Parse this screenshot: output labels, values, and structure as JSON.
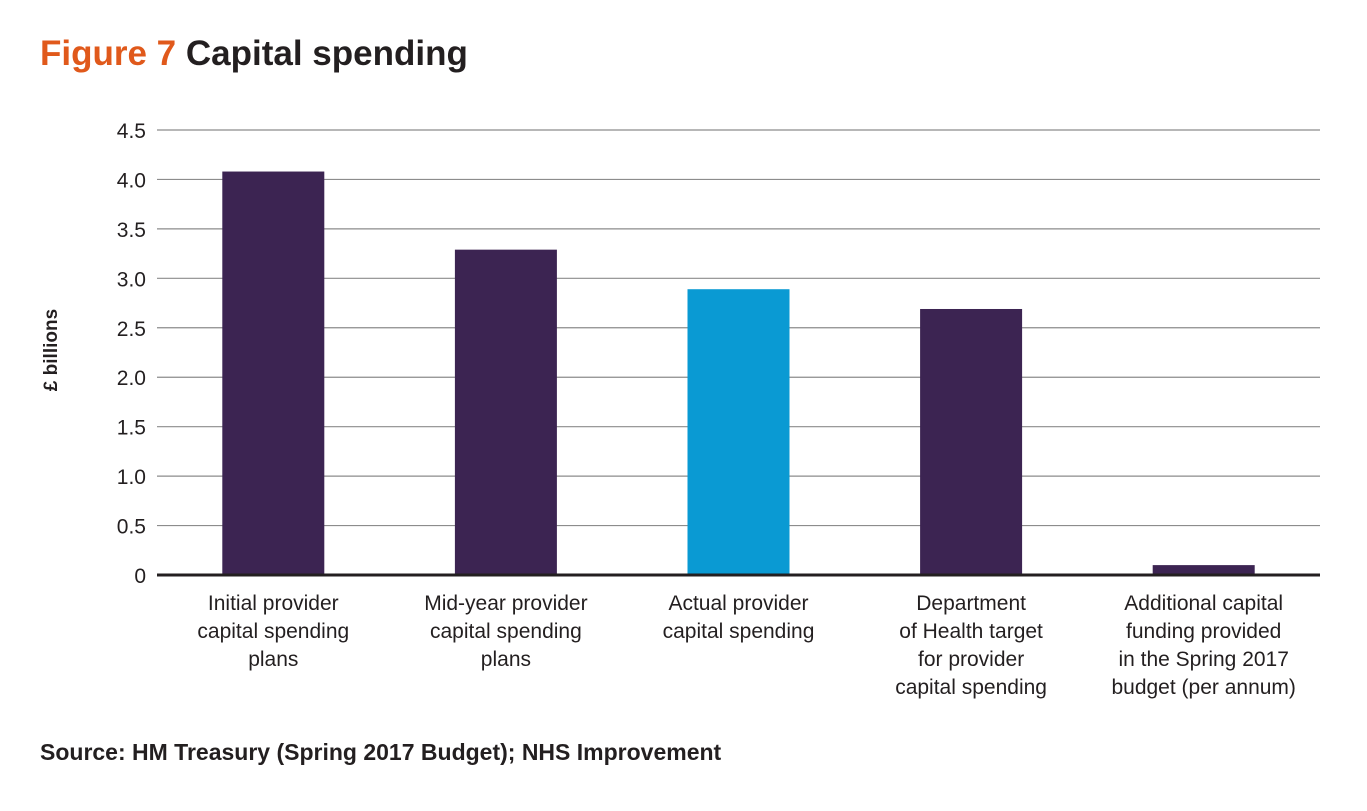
{
  "figure_label": "Figure 7",
  "figure_title": "Capital spending",
  "source": "Source: HM Treasury (Spring 2017 Budget); NHS Improvement",
  "chart_data": {
    "type": "bar",
    "title": "Capital spending",
    "xlabel": "",
    "ylabel": "£ billions",
    "ylim": [
      0,
      4.5
    ],
    "yticks": [
      0,
      0.5,
      1.0,
      1.5,
      2.0,
      2.5,
      3.0,
      3.5,
      4.0,
      4.5
    ],
    "ytick_labels": [
      "0",
      "0.5",
      "1.0",
      "1.5",
      "2.0",
      "2.5",
      "3.0",
      "3.5",
      "4.0",
      "4.5"
    ],
    "grid": true,
    "categories": [
      [
        "Initial provider",
        "capital spending",
        "plans"
      ],
      [
        "Mid-year provider",
        "capital spending",
        "plans"
      ],
      [
        "Actual provider",
        "capital spending"
      ],
      [
        "Department",
        "of Health target",
        "for provider",
        "capital spending"
      ],
      [
        "Additional capital",
        "funding provided",
        "in the Spring 2017",
        "budget (per annum)"
      ]
    ],
    "values": [
      4.08,
      3.29,
      2.89,
      2.69,
      0.1
    ],
    "colors": [
      "#3c2452",
      "#3c2452",
      "#0a9ad3",
      "#3c2452",
      "#3c2452"
    ]
  }
}
